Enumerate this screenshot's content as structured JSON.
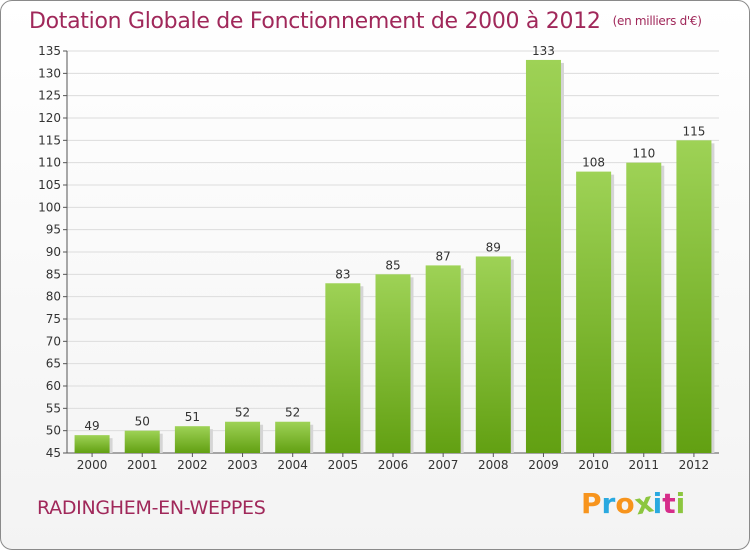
{
  "header": {
    "title": "Dotation Globale de Fonctionnement de 2000 à 2012",
    "unit": "(en milliers d'€)"
  },
  "footer": {
    "city": "RADINGHEM-EN-WEPPES",
    "logo_text": "Proxiti",
    "logo_colors": [
      "#f7941d",
      "#2aa9e0",
      "#f7941d",
      "#8cc63f",
      "#2aa9e0",
      "#d62d8a",
      "#8cc63f"
    ]
  },
  "chart_data": {
    "type": "bar",
    "categories": [
      "2000",
      "2001",
      "2002",
      "2003",
      "2004",
      "2005",
      "2006",
      "2007",
      "2008",
      "2009",
      "2010",
      "2011",
      "2012"
    ],
    "values": [
      49,
      50,
      51,
      52,
      52,
      83,
      85,
      87,
      89,
      133,
      108,
      110,
      115
    ],
    "ylim": [
      45,
      135
    ],
    "ytick_step": 5,
    "grid": true,
    "bar_color": "#7cc03a"
  }
}
